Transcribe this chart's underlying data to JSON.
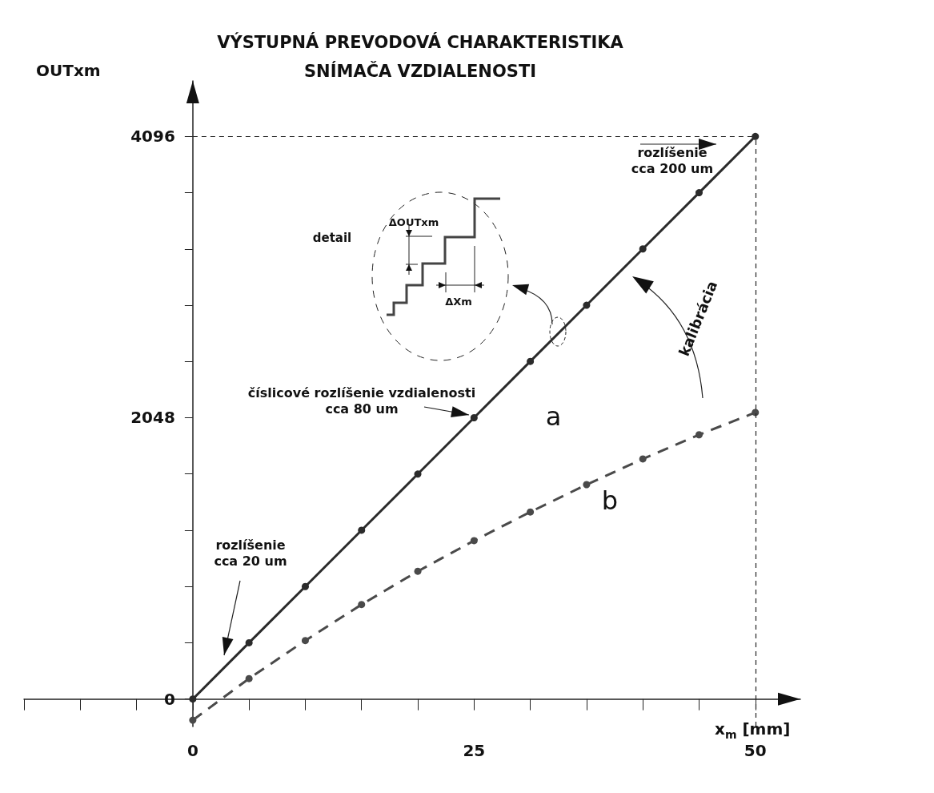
{
  "chart_data": {
    "type": "line",
    "title": "VÝSTUPNÁ PREVODOVÁ CHARAKTERISTIKA\nSNÍMAČA VZDIALENOSTI",
    "xlabel": "x$_{m}$ [mm]",
    "ylabel": "OUTxm",
    "x": [
      0,
      5,
      10,
      15,
      20,
      25,
      30,
      35,
      40,
      45,
      50
    ],
    "series": [
      {
        "name": "a",
        "color": "#2b2b2b",
        "line_style": "solid",
        "values": [
          0,
          410,
          819,
          1229,
          1638,
          2048,
          2458,
          2867,
          3277,
          3686,
          4096
        ]
      },
      {
        "name": "b",
        "color": "#4a4a4a",
        "line_style": "dashed",
        "values": [
          -154,
          149,
          426,
          688,
          930,
          1153,
          1362,
          1561,
          1748,
          1924,
          2086
        ]
      }
    ],
    "xlim": [
      -15,
      54
    ],
    "ylim": [
      -200,
      4500
    ],
    "xticks": [
      {
        "value": -15,
        "label": null
      },
      {
        "value": -10,
        "label": null
      },
      {
        "value": -5,
        "label": null
      },
      0,
      {
        "value": 5,
        "label": null
      },
      {
        "value": 10,
        "label": null
      },
      {
        "value": 15,
        "label": null
      },
      {
        "value": 20,
        "label": null
      },
      25,
      {
        "value": 30,
        "label": null
      },
      {
        "value": 35,
        "label": null
      },
      {
        "value": 40,
        "label": null
      },
      {
        "value": 45,
        "label": null
      },
      50
    ],
    "yticks": [
      0,
      {
        "value": 409.6,
        "label": null
      },
      {
        "value": 819.2,
        "label": null
      },
      {
        "value": 1228.8,
        "label": null
      },
      {
        "value": 1638.4,
        "label": null
      },
      2048,
      {
        "value": 2457.6,
        "label": null
      },
      {
        "value": 2867.2,
        "label": null
      },
      {
        "value": 3276.8,
        "label": null
      },
      {
        "value": 3686.4,
        "label": null
      },
      4096
    ],
    "ref_lines": [
      {
        "axis": "y",
        "value": 4096,
        "line_style": "dashed"
      },
      {
        "axis": "x",
        "value": 50,
        "line_style": "dashed"
      }
    ],
    "annotations": [
      "rozlíšenie\ncca 200 um",
      "číslicové rozlíšenie vzdialenosti\ncca 80 um",
      "rozlíšenie\ncca 20 um",
      "detail",
      "ΔOUTxm",
      "ΔXm",
      "kalibrácia"
    ],
    "marker": "circle",
    "grid": false,
    "legend": false
  }
}
